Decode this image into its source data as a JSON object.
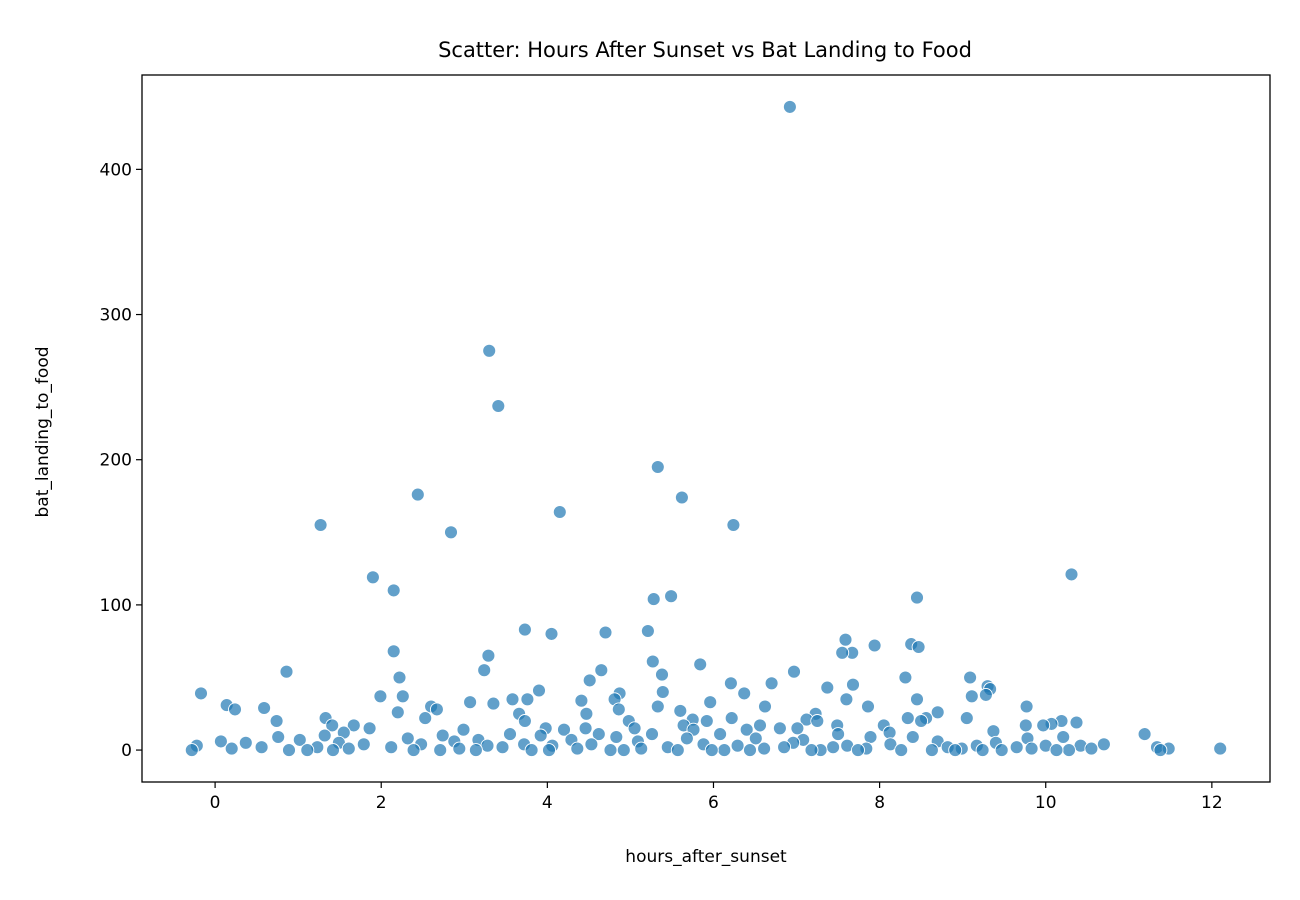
{
  "chart_data": {
    "type": "scatter",
    "title": "Scatter: Hours After Sunset vs Bat Landing to Food",
    "xlabel": "hours_after_sunset",
    "ylabel": "bat_landing_to_food",
    "xlim": [
      -0.88,
      12.7
    ],
    "ylim": [
      -22,
      465
    ],
    "xticks": [
      0,
      2,
      4,
      6,
      8,
      10,
      12
    ],
    "yticks": [
      0,
      100,
      200,
      300,
      400
    ],
    "grid": false,
    "legend": "none",
    "color": "#1f77b4",
    "points": [
      [
        6.92,
        443
      ],
      [
        3.3,
        275
      ],
      [
        3.41,
        237
      ],
      [
        5.33,
        195
      ],
      [
        2.44,
        176
      ],
      [
        5.62,
        174
      ],
      [
        4.15,
        164
      ],
      [
        1.27,
        155
      ],
      [
        6.24,
        155
      ],
      [
        2.84,
        150
      ],
      [
        10.31,
        121
      ],
      [
        1.9,
        119
      ],
      [
        2.15,
        110
      ],
      [
        5.49,
        106
      ],
      [
        8.45,
        105
      ],
      [
        5.28,
        104
      ],
      [
        3.73,
        83
      ],
      [
        5.21,
        82
      ],
      [
        4.7,
        81
      ],
      [
        4.05,
        80
      ],
      [
        7.59,
        76
      ],
      [
        8.38,
        73
      ],
      [
        7.94,
        72
      ],
      [
        8.47,
        71
      ],
      [
        2.15,
        68
      ],
      [
        7.67,
        67
      ],
      [
        7.55,
        67
      ],
      [
        3.29,
        65
      ],
      [
        5.27,
        61
      ],
      [
        5.84,
        59
      ],
      [
        3.24,
        55
      ],
      [
        4.65,
        55
      ],
      [
        6.97,
        54
      ],
      [
        0.86,
        54
      ],
      [
        5.38,
        52
      ],
      [
        2.22,
        50
      ],
      [
        8.31,
        50
      ],
      [
        9.09,
        50
      ],
      [
        4.51,
        48
      ],
      [
        6.21,
        46
      ],
      [
        6.7,
        46
      ],
      [
        7.68,
        45
      ],
      [
        9.3,
        44
      ],
      [
        7.37,
        43
      ],
      [
        9.33,
        42
      ],
      [
        3.9,
        41
      ],
      [
        5.39,
        40
      ],
      [
        6.37,
        39
      ],
      [
        -0.17,
        39
      ],
      [
        4.87,
        39
      ],
      [
        9.28,
        38
      ],
      [
        1.99,
        37
      ],
      [
        2.26,
        37
      ],
      [
        9.11,
        37
      ],
      [
        3.58,
        35
      ],
      [
        8.45,
        35
      ],
      [
        3.76,
        35
      ],
      [
        4.81,
        35
      ],
      [
        7.6,
        35
      ],
      [
        4.41,
        34
      ],
      [
        5.96,
        33
      ],
      [
        3.07,
        33
      ],
      [
        3.35,
        32
      ],
      [
        0.14,
        31
      ],
      [
        2.6,
        30
      ],
      [
        6.62,
        30
      ],
      [
        9.77,
        30
      ],
      [
        5.33,
        30
      ],
      [
        7.86,
        30
      ],
      [
        0.59,
        29
      ],
      [
        0.24,
        28
      ],
      [
        4.86,
        28
      ],
      [
        2.67,
        28
      ],
      [
        5.6,
        27
      ],
      [
        2.2,
        26
      ],
      [
        8.7,
        26
      ],
      [
        4.47,
        25
      ],
      [
        7.23,
        25
      ],
      [
        3.66,
        25
      ],
      [
        8.34,
        22
      ],
      [
        6.22,
        22
      ],
      [
        9.05,
        22
      ],
      [
        8.56,
        22
      ],
      [
        1.33,
        22
      ],
      [
        2.53,
        22
      ],
      [
        7.12,
        21
      ],
      [
        5.75,
        21
      ],
      [
        0.74,
        20
      ],
      [
        8.5,
        20
      ],
      [
        4.98,
        20
      ],
      [
        5.92,
        20
      ],
      [
        7.25,
        20
      ],
      [
        10.19,
        20
      ],
      [
        3.73,
        20
      ],
      [
        10.37,
        19
      ],
      [
        10.07,
        18
      ],
      [
        1.41,
        17
      ],
      [
        1.67,
        17
      ],
      [
        5.64,
        17
      ],
      [
        6.56,
        17
      ],
      [
        7.49,
        17
      ],
      [
        8.05,
        17
      ],
      [
        9.97,
        17
      ],
      [
        9.76,
        17
      ],
      [
        3.98,
        15
      ],
      [
        1.86,
        15
      ],
      [
        4.46,
        15
      ],
      [
        5.05,
        15
      ],
      [
        6.8,
        15
      ],
      [
        7.01,
        15
      ],
      [
        2.99,
        14
      ],
      [
        4.2,
        14
      ],
      [
        5.76,
        14
      ],
      [
        6.4,
        14
      ],
      [
        9.37,
        13
      ],
      [
        8.12,
        12
      ],
      [
        1.55,
        12
      ],
      [
        11.19,
        11
      ],
      [
        3.55,
        11
      ],
      [
        4.62,
        11
      ],
      [
        5.26,
        11
      ],
      [
        6.08,
        11
      ],
      [
        7.5,
        11
      ],
      [
        1.32,
        10
      ],
      [
        2.74,
        10
      ],
      [
        3.92,
        10
      ],
      [
        4.83,
        9
      ],
      [
        7.89,
        9
      ],
      [
        8.4,
        9
      ],
      [
        0.76,
        9
      ],
      [
        10.21,
        9
      ],
      [
        2.32,
        8
      ],
      [
        5.68,
        8
      ],
      [
        6.51,
        8
      ],
      [
        9.78,
        8
      ],
      [
        3.17,
        7
      ],
      [
        4.29,
        7
      ],
      [
        7.08,
        7
      ],
      [
        1.02,
        7
      ],
      [
        0.07,
        6
      ],
      [
        2.88,
        6
      ],
      [
        8.7,
        6
      ],
      [
        5.09,
        6
      ],
      [
        0.37,
        5
      ],
      [
        1.49,
        5
      ],
      [
        6.96,
        5
      ],
      [
        9.4,
        5
      ],
      [
        10.7,
        4
      ],
      [
        3.72,
        4
      ],
      [
        4.53,
        4
      ],
      [
        8.13,
        4
      ],
      [
        1.79,
        4
      ],
      [
        2.48,
        4
      ],
      [
        5.88,
        4
      ],
      [
        7.61,
        3
      ],
      [
        10.0,
        3
      ],
      [
        -0.22,
        3
      ],
      [
        3.28,
        3
      ],
      [
        6.29,
        3
      ],
      [
        9.17,
        3
      ],
      [
        10.42,
        3
      ],
      [
        4.06,
        3
      ],
      [
        1.23,
        2
      ],
      [
        2.12,
        2
      ],
      [
        5.45,
        2
      ],
      [
        8.82,
        2
      ],
      [
        11.34,
        2
      ],
      [
        0.56,
        2
      ],
      [
        3.46,
        2
      ],
      [
        6.85,
        2
      ],
      [
        7.44,
        2
      ],
      [
        9.65,
        2
      ],
      [
        11.48,
        1
      ],
      [
        12.1,
        1
      ],
      [
        0.2,
        1
      ],
      [
        1.61,
        1
      ],
      [
        2.94,
        1
      ],
      [
        4.36,
        1
      ],
      [
        5.13,
        1
      ],
      [
        6.61,
        1
      ],
      [
        7.84,
        1
      ],
      [
        8.99,
        1
      ],
      [
        9.83,
        1
      ],
      [
        10.55,
        1
      ],
      [
        -0.28,
        0
      ],
      [
        0.89,
        0
      ],
      [
        2.39,
        0
      ],
      [
        3.81,
        0
      ],
      [
        4.92,
        0
      ],
      [
        6.13,
        0
      ],
      [
        7.29,
        0
      ],
      [
        8.26,
        0
      ],
      [
        9.47,
        0
      ],
      [
        10.28,
        0
      ],
      [
        11.38,
        0
      ],
      [
        1.42,
        0
      ],
      [
        2.71,
        0
      ],
      [
        4.76,
        0
      ],
      [
        5.57,
        0
      ],
      [
        6.44,
        0
      ],
      [
        7.74,
        0
      ],
      [
        8.63,
        0
      ],
      [
        9.24,
        0
      ],
      [
        1.11,
        0
      ],
      [
        3.14,
        0
      ],
      [
        4.02,
        0
      ],
      [
        5.98,
        0
      ],
      [
        7.18,
        0
      ],
      [
        8.91,
        0
      ],
      [
        10.13,
        0
      ]
    ]
  }
}
